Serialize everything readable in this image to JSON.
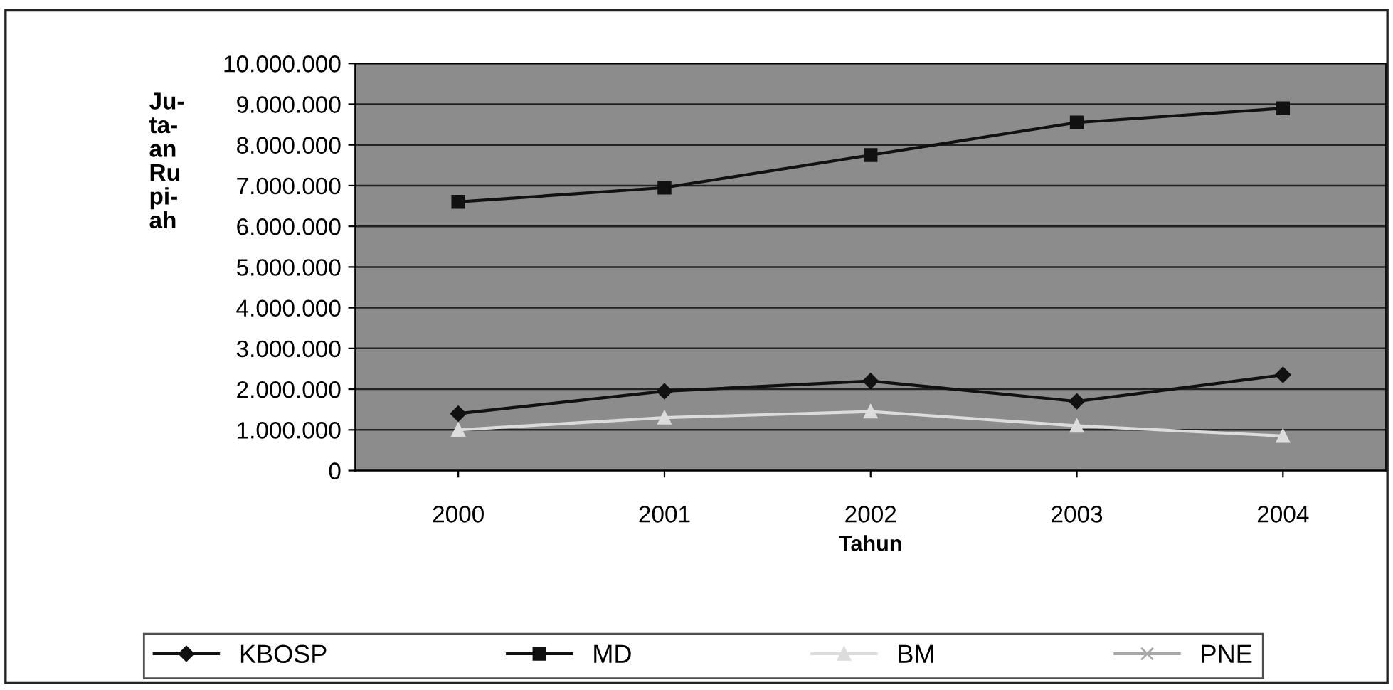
{
  "chart_data": {
    "type": "line",
    "xlabel": "Tahun",
    "ylabel": "Ju-\nta-\nan\nRu\npi-\nah",
    "categories": [
      "2000",
      "2001",
      "2002",
      "2003",
      "2004"
    ],
    "series": [
      {
        "name": "KBOSP",
        "color": "#111111",
        "marker": "diamond",
        "values": [
          1400000,
          1950000,
          2200000,
          1700000,
          2350000
        ]
      },
      {
        "name": "MD",
        "color": "#111111",
        "marker": "square",
        "values": [
          6600000,
          6950000,
          7750000,
          8550000,
          8900000
        ]
      },
      {
        "name": "BM",
        "color": "#dcdcdc",
        "marker": "triangle",
        "values": [
          1000000,
          1300000,
          1450000,
          1100000,
          850000
        ]
      },
      {
        "name": "PNE",
        "color": "#a8a8a8",
        "marker": "cross",
        "values": [
          null,
          null,
          null,
          null,
          null
        ]
      }
    ],
    "ylim": [
      0,
      10000000
    ],
    "yticks": [
      0,
      {
        "value": 1000000,
        "label": "1.000.000"
      },
      {
        "value": 2000000,
        "label": "2.000.000"
      },
      {
        "value": 3000000,
        "label": "3.000.000"
      },
      {
        "value": 4000000,
        "label": "4.000.000"
      },
      {
        "value": 5000000,
        "label": "5.000.000"
      },
      {
        "value": 6000000,
        "label": "6.000.000"
      },
      {
        "value": 7000000,
        "label": "7.000.000"
      },
      {
        "value": 8000000,
        "label": "8.000.000"
      },
      {
        "value": 9000000,
        "label": "9.000.000"
      },
      {
        "value": 10000000,
        "label": "10.000.000"
      }
    ],
    "grid": "y",
    "legend": "bottom"
  }
}
